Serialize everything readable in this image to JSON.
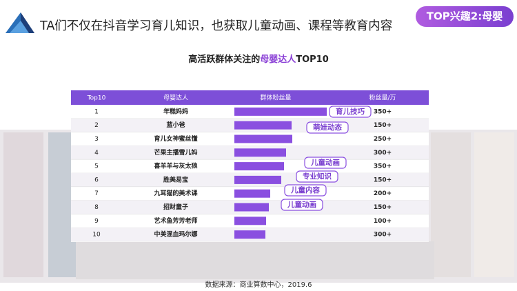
{
  "header": {
    "title": "TA们不仅在抖音学习育儿知识，也获取儿童动画、课程等教育内容",
    "badge": "TOP兴趣2:母婴"
  },
  "subtitle": {
    "prefix": "高活跃群体关注的",
    "highlight": "母婴达人",
    "suffix": "TOP10"
  },
  "table": {
    "columns": [
      "Top10",
      "母婴达人",
      "群体粉丝量",
      "粉丝量/万"
    ],
    "rows": [
      {
        "rank": "1",
        "name": "年糕妈妈",
        "bar": 134,
        "fans": "350+"
      },
      {
        "rank": "2",
        "name": "蓝小爸",
        "bar": 83,
        "fans": "150+"
      },
      {
        "rank": "3",
        "name": "育儿女神蜜丝懂",
        "bar": 84,
        "fans": "250+"
      },
      {
        "rank": "4",
        "name": "芒果主播雪儿妈",
        "bar": 75,
        "fans": "300+"
      },
      {
        "rank": "5",
        "name": "喜羊羊与灰太狼",
        "bar": 72,
        "fans": "350+"
      },
      {
        "rank": "6",
        "name": "胜美易宝",
        "bar": 68,
        "fans": "150+"
      },
      {
        "rank": "7",
        "name": "九耳猫的美术课",
        "bar": 52,
        "fans": "200+"
      },
      {
        "rank": "8",
        "name": "招财童子",
        "bar": 50,
        "fans": "150+"
      },
      {
        "rank": "9",
        "name": "艺术鱼芳芳老师",
        "bar": 46,
        "fans": "100+"
      },
      {
        "rank": "10",
        "name": "中美混血玛尔娜",
        "bar": 45,
        "fans": "300+"
      }
    ]
  },
  "tags": [
    "育儿技巧",
    "萌娃动态",
    "儿童动画",
    "专业知识",
    "儿童内容",
    "儿童动画"
  ],
  "source": "数据来源：商业算数中心，2019.6"
}
